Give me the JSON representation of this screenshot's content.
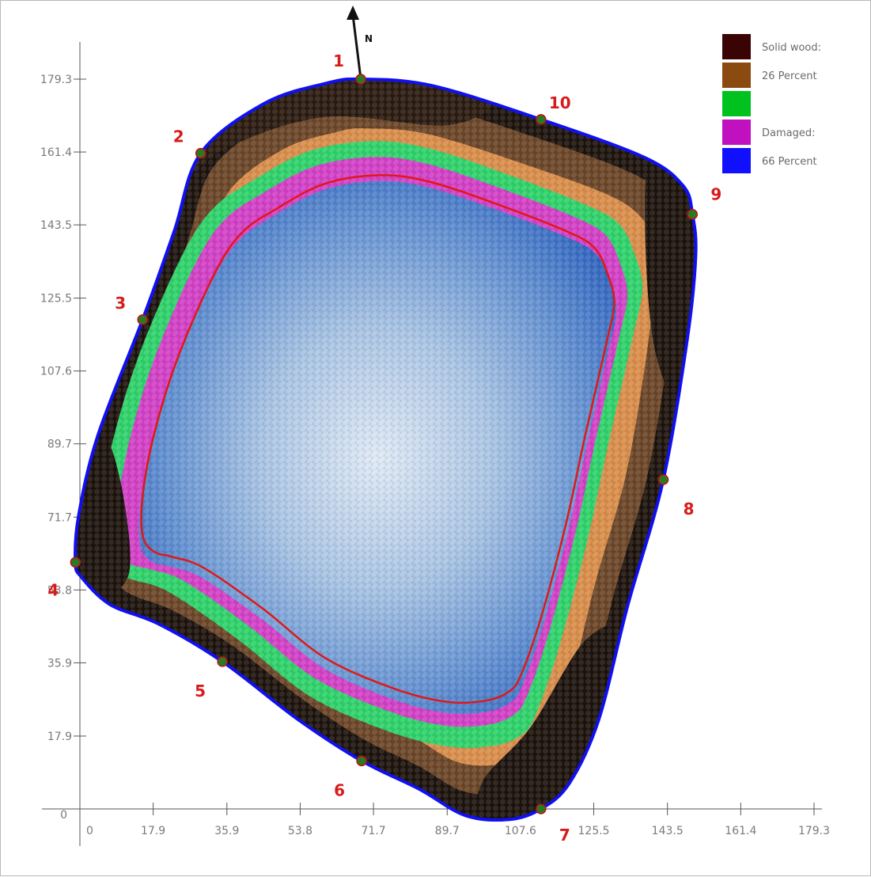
{
  "chart_data": {
    "type": "heatmap",
    "title": "",
    "xlabel": "",
    "ylabel": "",
    "xlim": [
      0,
      179.3
    ],
    "ylim": [
      0,
      179.3
    ],
    "x_ticks": [
      "0",
      "17.9",
      "35.9",
      "53.8",
      "71.7",
      "89.7",
      "107.6",
      "125.5",
      "143.5",
      "161.4",
      "179.3"
    ],
    "y_ticks": [
      "0",
      "17.9",
      "35.9",
      "53.8",
      "71.7",
      "89.7",
      "107.6",
      "125.5",
      "143.5",
      "161.4",
      "179.3"
    ],
    "north_label": "N",
    "legend": {
      "placement": "top-right",
      "entries": [
        {
          "color": "#3a0404",
          "label": "Solid wood:"
        },
        {
          "color": "#8a4a10",
          "label": "26 Percent"
        },
        {
          "color": "#00c21f",
          "label": ""
        },
        {
          "color": "#c010c0",
          "label": "Damaged:"
        },
        {
          "color": "#1010ff",
          "label": "66 Percent"
        }
      ]
    },
    "measurement_points": [
      {
        "label": "1",
        "x": 68.6,
        "y": 179.3
      },
      {
        "label": "10",
        "x": 112.6,
        "y": 169.4
      },
      {
        "label": "9",
        "x": 149.6,
        "y": 146.1
      },
      {
        "label": "8",
        "x": 142.5,
        "y": 80.9
      },
      {
        "label": "7",
        "x": 112.6,
        "y": 0.0
      },
      {
        "label": "6",
        "x": 68.8,
        "y": 11.8
      },
      {
        "label": "5",
        "x": 34.8,
        "y": 36.2
      },
      {
        "label": "4",
        "x": -1.1,
        "y": 60.6
      },
      {
        "label": "3",
        "x": 15.3,
        "y": 120.2
      },
      {
        "label": "2",
        "x": 29.5,
        "y": 161.1
      }
    ],
    "outline": [
      [
        68.6,
        179.3
      ],
      [
        86,
        177.7
      ],
      [
        112.6,
        169.4
      ],
      [
        138,
        160
      ],
      [
        147.4,
        153.0
      ],
      [
        149.6,
        146.1
      ],
      [
        150.4,
        136
      ],
      [
        148.4,
        115.9
      ],
      [
        142.5,
        80.9
      ],
      [
        133.8,
        50.0
      ],
      [
        126.7,
        21.9
      ],
      [
        119.6,
        6.4
      ],
      [
        112.6,
        0.0
      ],
      [
        104.7,
        -2.6
      ],
      [
        94.1,
        -1.6
      ],
      [
        83.0,
        4.8
      ],
      [
        68.8,
        11.8
      ],
      [
        53.1,
        22.1
      ],
      [
        34.8,
        36.2
      ],
      [
        19.3,
        45.4
      ],
      [
        7.4,
        50.2
      ],
      [
        0.4,
        56.9
      ],
      [
        -1.1,
        60.6
      ],
      [
        -0.3,
        72.1
      ],
      [
        4.4,
        91.8
      ],
      [
        15.3,
        120.2
      ],
      [
        23.0,
        141.8
      ],
      [
        29.5,
        161.1
      ],
      [
        45.2,
        173.4
      ],
      [
        60.3,
        178.3
      ]
    ],
    "inner_contour": [
      [
        73,
        155.7
      ],
      [
        85.4,
        154.1
      ],
      [
        103.2,
        148.1
      ],
      [
        119.6,
        141.6
      ],
      [
        125.8,
        137.7
      ],
      [
        128.9,
        131.4
      ],
      [
        130.5,
        124.2
      ],
      [
        128.5,
        114.1
      ],
      [
        123.2,
        90.8
      ],
      [
        118.8,
        70.4
      ],
      [
        112.7,
        47.3
      ],
      [
        107.8,
        33.1
      ],
      [
        104.9,
        28.9
      ],
      [
        99.2,
        26.6
      ],
      [
        89.7,
        26.3
      ],
      [
        76.9,
        29.5
      ],
      [
        59.9,
        37.1
      ],
      [
        44.8,
        49.1
      ],
      [
        30.3,
        59.2
      ],
      [
        22.7,
        61.9
      ],
      [
        18.1,
        63.2
      ],
      [
        15.3,
        67.3
      ],
      [
        15.4,
        77.6
      ],
      [
        18.3,
        92.8
      ],
      [
        24.0,
        111.1
      ],
      [
        32.9,
        131.6
      ],
      [
        39.5,
        141.5
      ],
      [
        47.6,
        147.2
      ],
      [
        59.5,
        153.5
      ]
    ]
  }
}
